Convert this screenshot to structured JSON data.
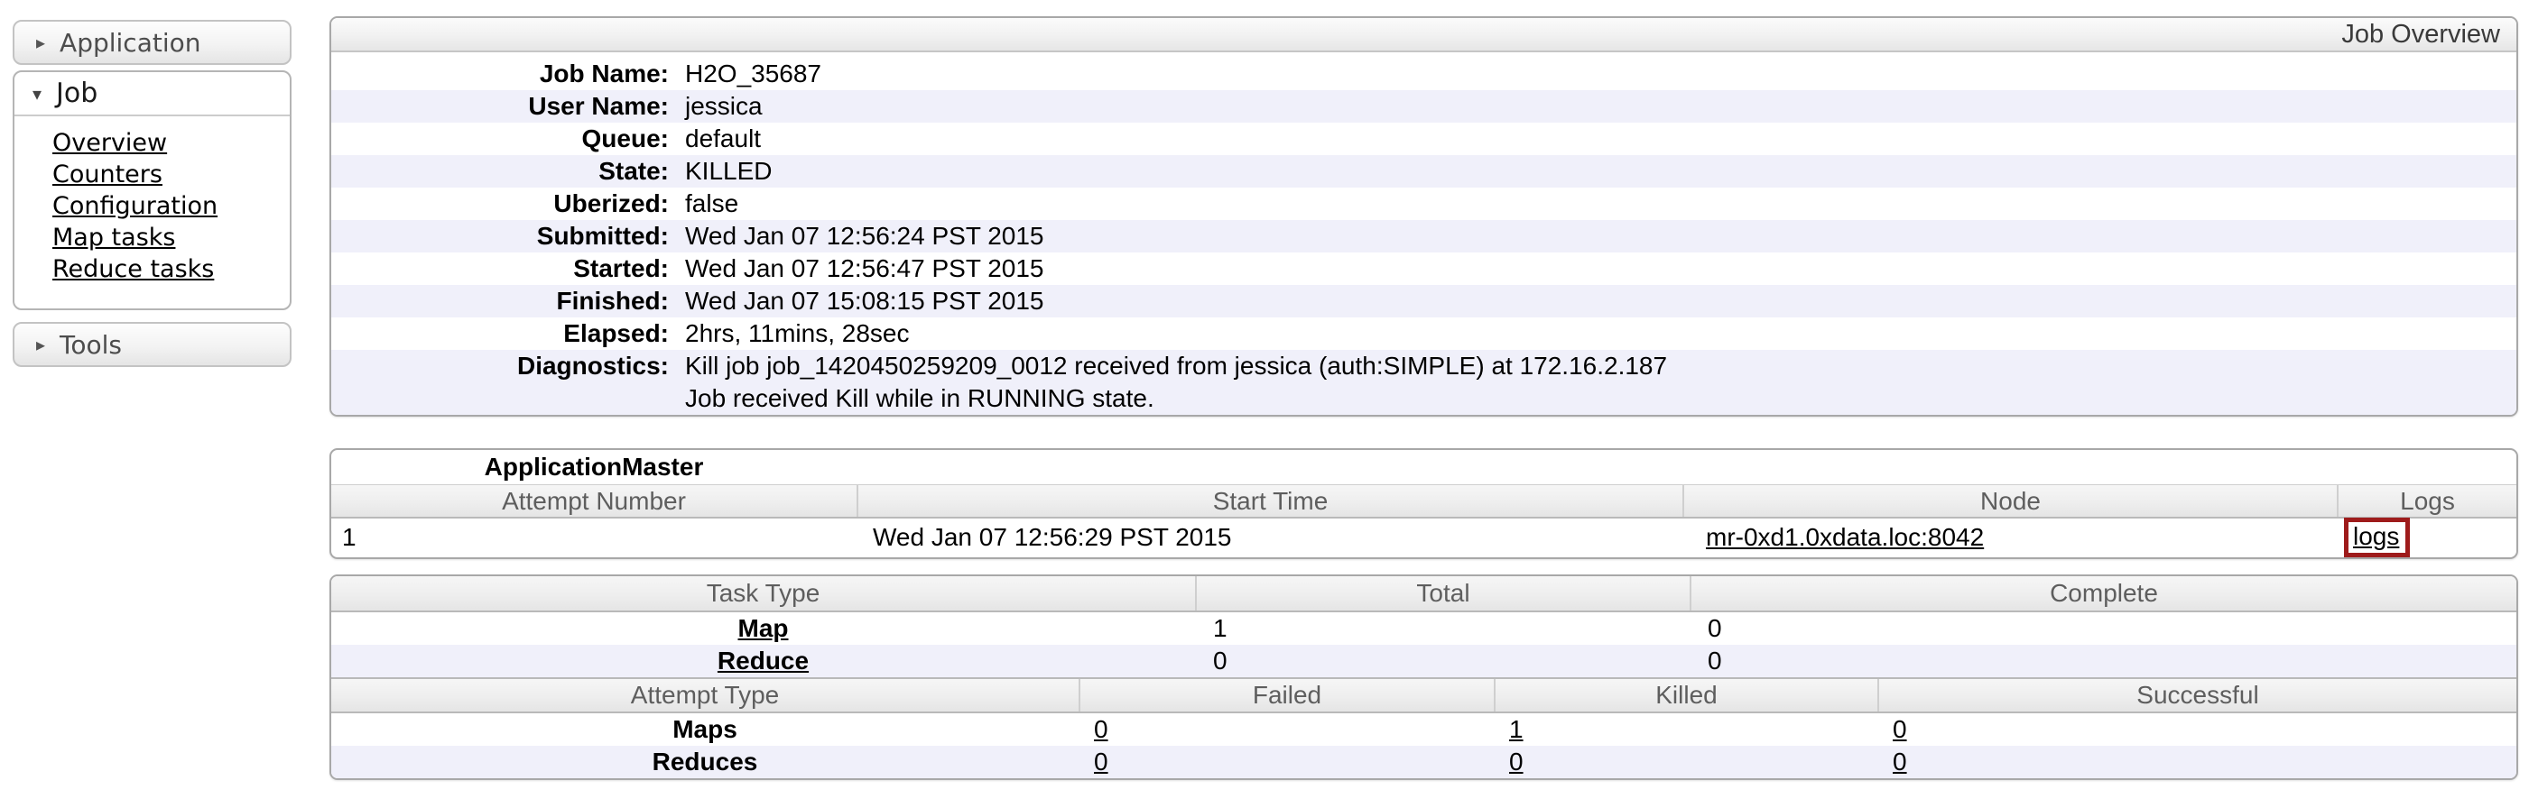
{
  "icons": {
    "collapsed": "▸",
    "expanded": "▾"
  },
  "colors": {
    "stripe": "#f0f0fa",
    "annotation_box": "#9e1b1b",
    "link": "#000000"
  },
  "sidebar": {
    "sections": [
      {
        "label": "Application",
        "state": "collapsed"
      },
      {
        "label": "Job",
        "state": "expanded",
        "items": [
          {
            "label": "Overview"
          },
          {
            "label": "Counters"
          },
          {
            "label": "Configuration"
          },
          {
            "label": "Map tasks"
          },
          {
            "label": "Reduce tasks"
          }
        ]
      },
      {
        "label": "Tools",
        "state": "collapsed"
      }
    ]
  },
  "overview": {
    "header": "Job Overview",
    "rows": [
      {
        "label": "Job Name:",
        "value": "H2O_35687"
      },
      {
        "label": "User Name:",
        "value": "jessica"
      },
      {
        "label": "Queue:",
        "value": "default"
      },
      {
        "label": "State:",
        "value": "KILLED"
      },
      {
        "label": "Uberized:",
        "value": "false"
      },
      {
        "label": "Submitted:",
        "value": "Wed Jan 07 12:56:24 PST 2015"
      },
      {
        "label": "Started:",
        "value": "Wed Jan 07 12:56:47 PST 2015"
      },
      {
        "label": "Finished:",
        "value": "Wed Jan 07 15:08:15 PST 2015"
      },
      {
        "label": "Elapsed:",
        "value": "2hrs, 11mins, 28sec"
      }
    ],
    "diagnostics": {
      "label": "Diagnostics:",
      "line1": "Kill job job_1420450259209_0012 received from jessica (auth:SIMPLE) at 172.16.2.187",
      "line2": "Job received Kill while in RUNNING state."
    }
  },
  "app_master": {
    "caption": "ApplicationMaster",
    "headers": [
      "Attempt Number",
      "Start Time",
      "Node",
      "Logs"
    ],
    "row": {
      "attempt_number": "1",
      "start_time": "Wed Jan 07 12:56:29 PST 2015",
      "node": "mr-0xd1.0xdata.loc:8042",
      "logs": "logs"
    }
  },
  "tasks": {
    "headers": [
      "Task Type",
      "Total",
      "Complete"
    ],
    "rows": [
      {
        "type": "Map",
        "total": "1",
        "complete": "0"
      },
      {
        "type": "Reduce",
        "total": "0",
        "complete": "0"
      }
    ]
  },
  "attempts": {
    "headers": [
      "Attempt Type",
      "Failed",
      "Killed",
      "Successful"
    ],
    "rows": [
      {
        "type": "Maps",
        "failed": "0",
        "killed": "1",
        "successful": "0"
      },
      {
        "type": "Reduces",
        "failed": "0",
        "killed": "0",
        "successful": "0"
      }
    ]
  }
}
